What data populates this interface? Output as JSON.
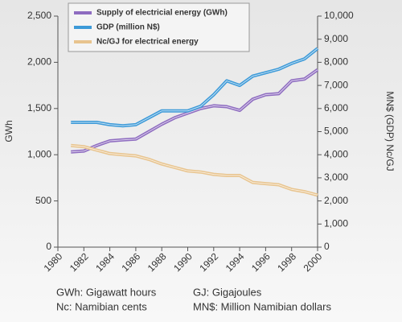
{
  "chart_data": {
    "type": "line",
    "ylabel": "GWh",
    "y2label": "MN$ (GDP)   Nc/GJ",
    "x": [
      1981,
      1982,
      1983,
      1984,
      1985,
      1986,
      1987,
      1988,
      1989,
      1990,
      1991,
      1992,
      1993,
      1994,
      1995,
      1996,
      1997,
      1998,
      1999,
      2000
    ],
    "series": [
      {
        "name": "Supply of electricial energy (GWh)",
        "color": "#8e6cc0",
        "values": [
          1030,
          1040,
          1100,
          1150,
          1160,
          1170,
          1250,
          1330,
          1400,
          1450,
          1500,
          1530,
          1520,
          1480,
          1600,
          1650,
          1660,
          1800,
          1820,
          1920
        ]
      },
      {
        "name": "GDP (million N$)",
        "color": "#3d9ad8",
        "axis": "y2",
        "values": [
          5400,
          5400,
          5400,
          5300,
          5250,
          5300,
          5600,
          5900,
          5900,
          5900,
          6100,
          6600,
          7200,
          7000,
          7400,
          7550,
          7700,
          7950,
          8150,
          8600
        ]
      },
      {
        "name": "Nc/GJ for electrical energy",
        "color": "#e8c48e",
        "axis": "y2",
        "values": [
          4400,
          4350,
          4200,
          4050,
          4000,
          3950,
          3800,
          3600,
          3450,
          3300,
          3250,
          3150,
          3100,
          3100,
          2800,
          2750,
          2700,
          2500,
          2400,
          2250
        ]
      }
    ],
    "xlim": [
      1980,
      2000
    ],
    "xticks": [
      1980,
      1982,
      1984,
      1986,
      1988,
      1990,
      1992,
      1994,
      1996,
      1998,
      2000
    ],
    "ylim": [
      0,
      2500
    ],
    "yticks": [
      0,
      500,
      {
        "value": 1000,
        "label": "1,000"
      },
      {
        "value": 1500,
        "label": "1,500"
      },
      {
        "value": 2000,
        "label": "2,000"
      },
      {
        "value": 2500,
        "label": "2,500"
      }
    ],
    "y2lim": [
      0,
      10000
    ],
    "y2ticks": [
      0,
      {
        "value": 1000,
        "label": "1,000"
      },
      {
        "value": 2000,
        "label": "2,000"
      },
      {
        "value": 3000,
        "label": "3,000"
      },
      {
        "value": 4000,
        "label": "4,000"
      },
      {
        "value": 5000,
        "label": "5,000"
      },
      {
        "value": 6000,
        "label": "6,000"
      },
      {
        "value": 7000,
        "label": "7,000"
      },
      {
        "value": 8000,
        "label": "8,000"
      },
      {
        "value": 9000,
        "label": "9,000"
      },
      {
        "value": 10000,
        "label": "10,000"
      }
    ],
    "notes": [
      "GWh: Gigawatt hours",
      "GJ: Gigajoules",
      "Nc: Namibian cents",
      "MN$: Million Namibian dollars"
    ]
  }
}
